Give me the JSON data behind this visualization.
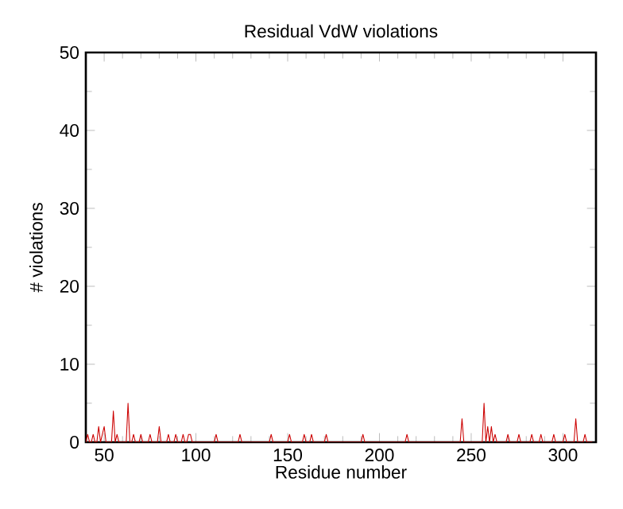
{
  "chart_data": {
    "type": "line",
    "title": "Residual VdW violations",
    "xlabel": "Residue number",
    "ylabel": "# violations",
    "x": [
      40,
      41,
      42,
      43,
      44,
      45,
      46,
      47,
      48,
      49,
      50,
      51,
      54,
      55,
      56,
      57,
      58,
      62,
      63,
      64,
      65,
      66,
      67,
      69,
      70,
      71,
      74,
      75,
      76,
      79,
      80,
      81,
      84,
      85,
      86,
      88,
      89,
      90,
      92,
      93,
      94,
      95,
      96,
      97,
      98,
      110,
      111,
      112,
      123,
      124,
      125,
      140,
      141,
      142,
      150,
      151,
      152,
      158,
      159,
      160,
      162,
      163,
      164,
      170,
      171,
      172,
      190,
      191,
      192,
      214,
      215,
      216,
      244,
      245,
      246,
      256,
      257,
      258,
      259,
      260,
      261,
      262,
      263,
      264,
      269,
      270,
      271,
      275,
      276,
      277,
      282,
      283,
      284,
      287,
      288,
      289,
      294,
      295,
      296,
      300,
      301,
      302,
      306,
      307,
      308,
      311,
      312,
      313,
      316
    ],
    "values": [
      0,
      1,
      0,
      0,
      1,
      0,
      0,
      2,
      0,
      1,
      2,
      0,
      0,
      4,
      0,
      1,
      0,
      0,
      5,
      0,
      0,
      1,
      0,
      0,
      1,
      0,
      0,
      1,
      0,
      0,
      2,
      0,
      0,
      1,
      0,
      0,
      1,
      0,
      0,
      1,
      0,
      0,
      1,
      1,
      0,
      0,
      1,
      0,
      0,
      1,
      0,
      0,
      1,
      0,
      0,
      1,
      0,
      0,
      1,
      0,
      0,
      1,
      0,
      0,
      1,
      0,
      0,
      1,
      0,
      0,
      1,
      0,
      0,
      3,
      0,
      0,
      5,
      0,
      2,
      0,
      2,
      0,
      1,
      0,
      0,
      1,
      0,
      0,
      1,
      0,
      0,
      1,
      0,
      0,
      1,
      0,
      0,
      1,
      0,
      0,
      1,
      0,
      0,
      3,
      0,
      0,
      1,
      0,
      0
    ],
    "color": "#cc0000",
    "xlim": [
      40,
      318
    ],
    "ylim": [
      0,
      50
    ],
    "xticks": [
      50,
      100,
      150,
      200,
      250,
      300
    ],
    "yticks": [
      0,
      10,
      20,
      30,
      40,
      50
    ],
    "grid": false
  }
}
